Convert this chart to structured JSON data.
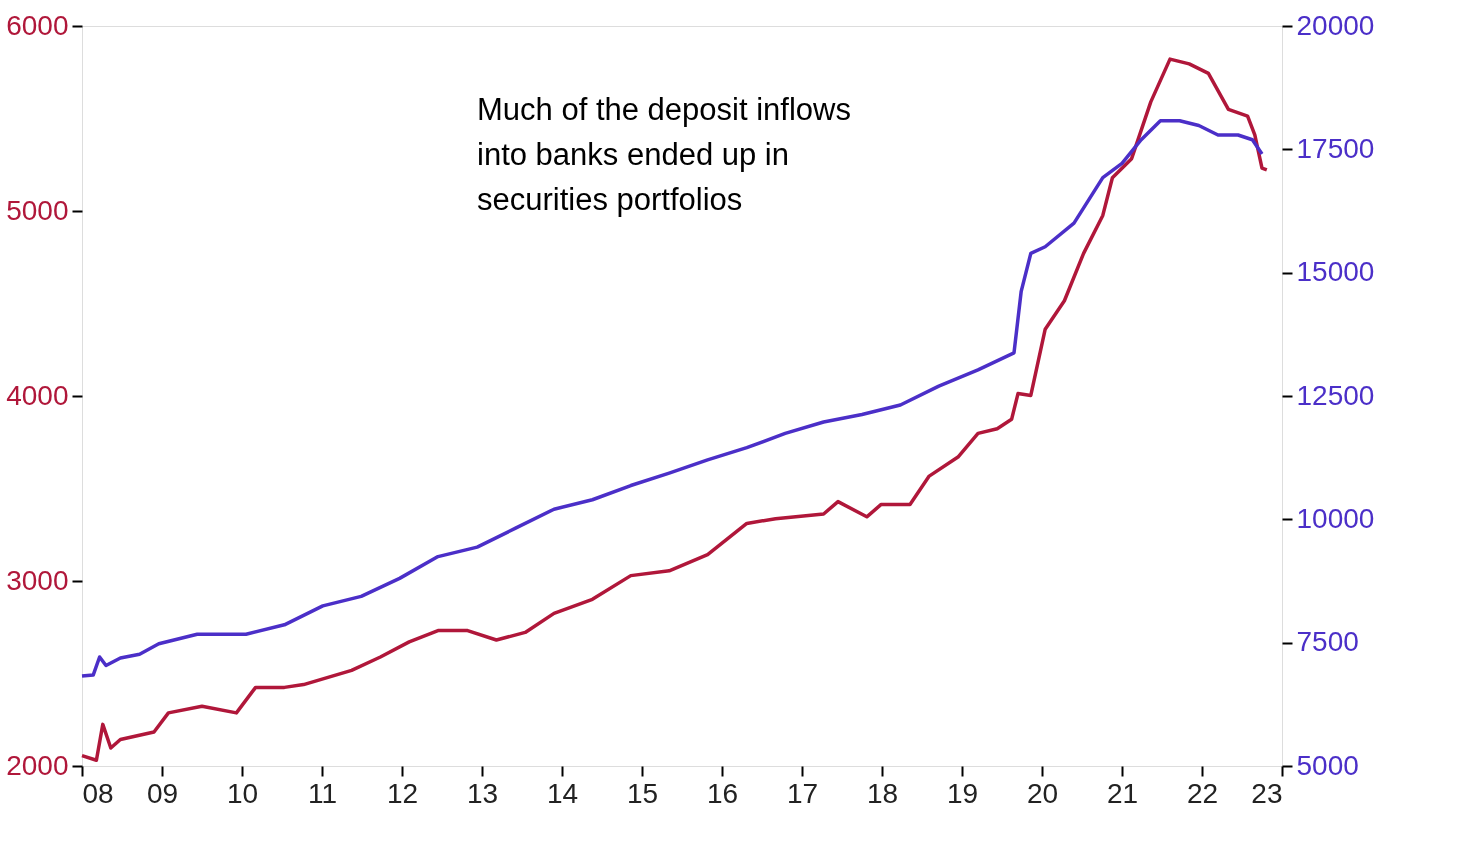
{
  "chart_data": {
    "type": "line",
    "annotations": [
      "Much of the deposit inflows\ninto banks ended up in\nsecurities portfolios"
    ],
    "xlim": [
      2008,
      2023
    ],
    "xticks": [
      {
        "value": 2008,
        "label": "08"
      },
      {
        "value": 2009,
        "label": "09"
      },
      {
        "value": 2010,
        "label": "10"
      },
      {
        "value": 2011,
        "label": "11"
      },
      {
        "value": 2012,
        "label": "12"
      },
      {
        "value": 2013,
        "label": "13"
      },
      {
        "value": 2014,
        "label": "14"
      },
      {
        "value": 2015,
        "label": "15"
      },
      {
        "value": 2016,
        "label": "16"
      },
      {
        "value": 2017,
        "label": "17"
      },
      {
        "value": 2018,
        "label": "18"
      },
      {
        "value": 2019,
        "label": "19"
      },
      {
        "value": 2020,
        "label": "20"
      },
      {
        "value": 2021,
        "label": "21"
      },
      {
        "value": 2022,
        "label": "22"
      },
      {
        "value": 2023,
        "label": "23"
      }
    ],
    "ylim": [
      2000,
      6000
    ],
    "yticks": [
      2000,
      3000,
      4000,
      5000,
      6000
    ],
    "y2lim": [
      5000,
      20000
    ],
    "y2ticks": [
      5000,
      7500,
      10000,
      12500,
      15000,
      17500,
      20000
    ],
    "grid": false,
    "line_style": "solid",
    "series": [
      {
        "color": "#b0173a",
        "x": [
          2008.0,
          2008.18,
          2008.26,
          2008.36,
          2008.48,
          2008.9,
          2009.08,
          2009.5,
          2009.93,
          2010.17,
          2010.53,
          2010.77,
          2011.37,
          2011.73,
          2012.09,
          2012.45,
          2012.82,
          2013.18,
          2013.54,
          2013.9,
          2014.38,
          2014.86,
          2015.34,
          2015.82,
          2016.31,
          2016.67,
          2017.27,
          2017.45,
          2017.81,
          2017.99,
          2018.35,
          2018.59,
          2018.95,
          2019.2,
          2019.44,
          2019.62,
          2019.7,
          2019.86,
          2020.04,
          2020.28,
          2020.52,
          2020.76,
          2020.88,
          2021.12,
          2021.36,
          2021.6,
          2021.84,
          2022.08,
          2022.33,
          2022.57,
          2022.66,
          2022.75,
          2022.81
        ],
        "values": [
          2056,
          2031,
          2225,
          2097,
          2143,
          2184,
          2287,
          2323,
          2287,
          2425,
          2425,
          2440,
          2517,
          2589,
          2671,
          2732,
          2732,
          2681,
          2722,
          2825,
          2901,
          3029,
          3055,
          3142,
          3311,
          3337,
          3362,
          3429,
          3347,
          3414,
          3414,
          3567,
          3670,
          3798,
          3823,
          3874,
          4013,
          4003,
          4361,
          4515,
          4771,
          4976,
          5180,
          5283,
          5590,
          5821,
          5795,
          5744,
          5549,
          5513,
          5411,
          5232,
          5222
        ]
      },
      {
        "color": "#4b2fc8",
        "axis": "y2",
        "x": [
          2008.0,
          2008.14,
          2008.22,
          2008.3,
          2008.48,
          2008.72,
          2008.96,
          2009.44,
          2010.05,
          2010.53,
          2011.01,
          2011.49,
          2011.97,
          2012.45,
          2012.94,
          2013.42,
          2013.9,
          2014.38,
          2014.86,
          2015.34,
          2015.82,
          2016.31,
          2016.79,
          2017.27,
          2017.75,
          2018.23,
          2018.71,
          2019.2,
          2019.65,
          2019.74,
          2019.86,
          2020.04,
          2020.4,
          2020.76,
          2021.0,
          2021.24,
          2021.48,
          2021.72,
          2021.96,
          2022.2,
          2022.45,
          2022.63,
          2022.75
        ],
        "values": [
          6824,
          6843,
          7209,
          7036,
          7190,
          7266,
          7478,
          7670,
          7670,
          7862,
          8246,
          8438,
          8803,
          9245,
          9437,
          9821,
          10205,
          10397,
          10685,
          10935,
          11204,
          11453,
          11741,
          11972,
          12125,
          12317,
          12701,
          13028,
          13374,
          14622,
          15390,
          15525,
          16005,
          16927,
          17215,
          17695,
          18079,
          18079,
          17983,
          17791,
          17791,
          17695,
          17407
        ]
      }
    ]
  }
}
